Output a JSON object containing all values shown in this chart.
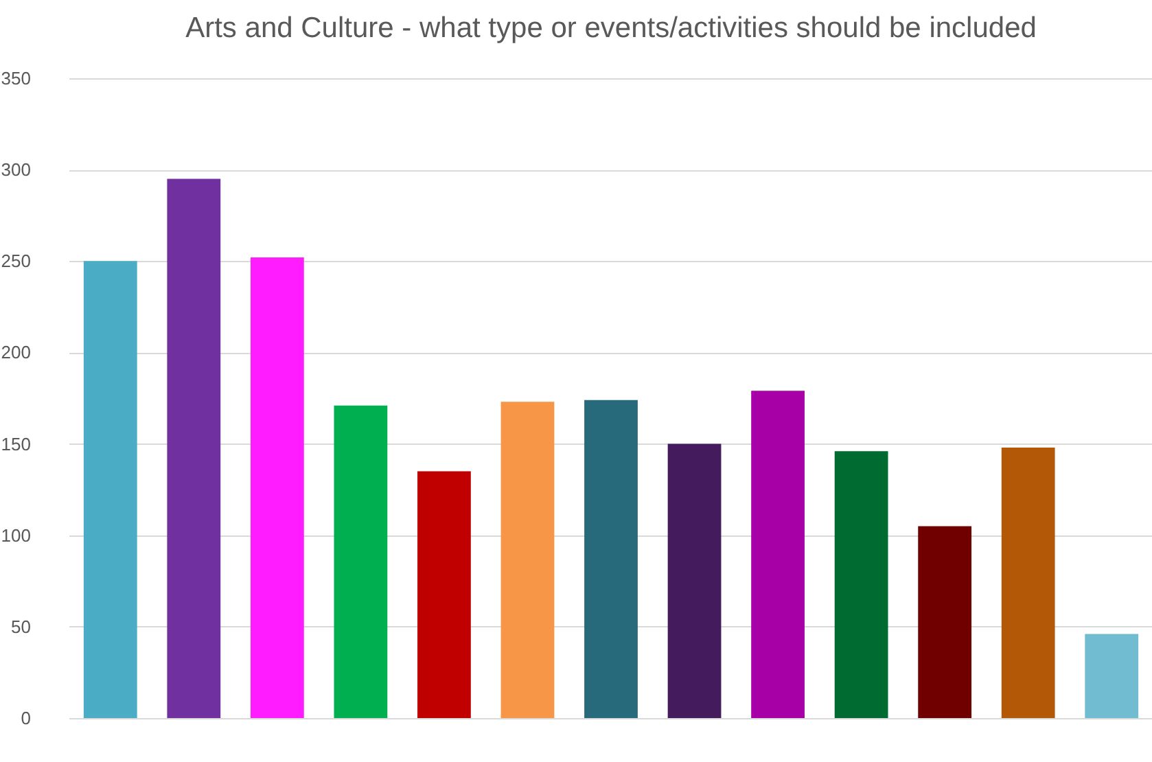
{
  "chart_data": {
    "type": "bar",
    "title": "Arts and Culture - what type or events/activities should be included",
    "categories": [
      null,
      null,
      null,
      null,
      null,
      null,
      null,
      null,
      null,
      null,
      null,
      null,
      null
    ],
    "values": [
      250,
      295,
      252,
      171,
      135,
      173,
      174,
      150,
      179,
      146,
      105,
      148,
      46
    ],
    "colors": [
      "#4bacc6",
      "#7030a0",
      "#ff1dff",
      "#00b050",
      "#c00000",
      "#f79646",
      "#276a7c",
      "#441c5e",
      "#a600a6",
      "#006b31",
      "#700000",
      "#b35807",
      "#72bcd2"
    ],
    "ylim": [
      0,
      350
    ],
    "yticks": [
      0,
      50,
      100,
      150,
      200,
      250,
      300,
      350
    ],
    "grid": "y",
    "legend": false,
    "tick_labels": "y"
  }
}
